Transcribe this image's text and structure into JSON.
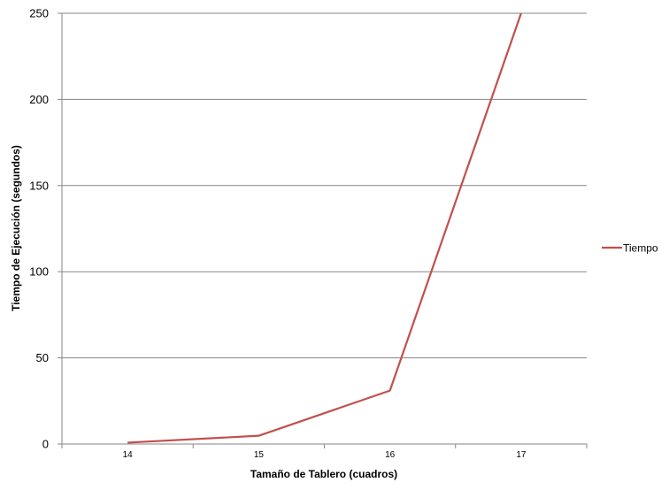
{
  "chart_data": {
    "type": "line",
    "categories": [
      "14",
      "15",
      "16",
      "17"
    ],
    "series": [
      {
        "name": "Tiempo",
        "values": [
          0.8,
          4.8,
          31,
          250
        ],
        "color": "#c0504d"
      }
    ],
    "title": "",
    "xlabel": "Tamaño de Tablero (cuadros)",
    "ylabel": "Tiempo de Ejecución (segundos)",
    "ylim": [
      0,
      250
    ],
    "yticks": [
      "0",
      "50",
      "100",
      "150",
      "200",
      "250"
    ],
    "grid": "horizontal",
    "legend_position": "right"
  }
}
